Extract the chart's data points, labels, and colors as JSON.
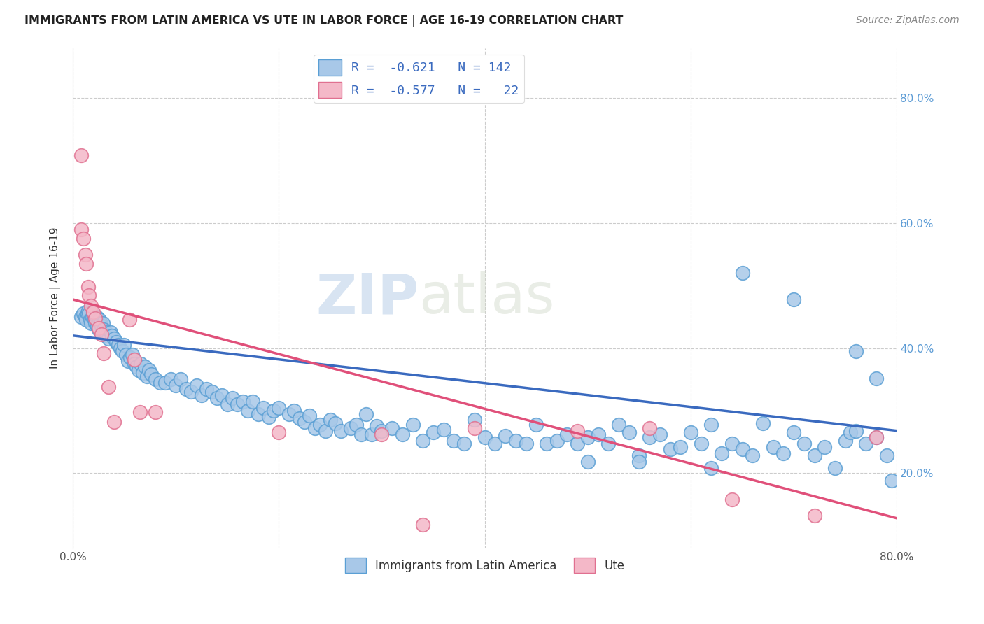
{
  "title": "IMMIGRANTS FROM LATIN AMERICA VS UTE IN LABOR FORCE | AGE 16-19 CORRELATION CHART",
  "source": "Source: ZipAtlas.com",
  "ylabel": "In Labor Force | Age 16-19",
  "xlim": [
    0.0,
    0.8
  ],
  "ylim": [
    0.08,
    0.88
  ],
  "yticks": [
    0.2,
    0.4,
    0.6,
    0.8
  ],
  "ytick_labels": [
    "20.0%",
    "40.0%",
    "60.0%",
    "80.0%"
  ],
  "xticks": [
    0.0,
    0.2,
    0.4,
    0.6,
    0.8
  ],
  "xtick_labels": [
    "0.0%",
    "",
    "",
    "",
    "80.0%"
  ],
  "watermark_zip": "ZIP",
  "watermark_atlas": "atlas",
  "blue_color": "#a8c8e8",
  "blue_edge_color": "#5a9fd4",
  "pink_color": "#f4b8c8",
  "pink_edge_color": "#e07090",
  "blue_line_color": "#3a6abf",
  "pink_line_color": "#e0507a",
  "blue_scatter": [
    [
      0.008,
      0.45
    ],
    [
      0.01,
      0.455
    ],
    [
      0.012,
      0.45
    ],
    [
      0.013,
      0.445
    ],
    [
      0.014,
      0.455
    ],
    [
      0.015,
      0.46
    ],
    [
      0.016,
      0.455
    ],
    [
      0.017,
      0.445
    ],
    [
      0.018,
      0.44
    ],
    [
      0.019,
      0.45
    ],
    [
      0.02,
      0.455
    ],
    [
      0.021,
      0.445
    ],
    [
      0.022,
      0.44
    ],
    [
      0.023,
      0.45
    ],
    [
      0.024,
      0.435
    ],
    [
      0.025,
      0.43
    ],
    [
      0.026,
      0.445
    ],
    [
      0.027,
      0.44
    ],
    [
      0.028,
      0.435
    ],
    [
      0.029,
      0.44
    ],
    [
      0.03,
      0.43
    ],
    [
      0.032,
      0.425
    ],
    [
      0.033,
      0.42
    ],
    [
      0.035,
      0.415
    ],
    [
      0.037,
      0.425
    ],
    [
      0.038,
      0.42
    ],
    [
      0.04,
      0.415
    ],
    [
      0.042,
      0.41
    ],
    [
      0.044,
      0.405
    ],
    [
      0.046,
      0.4
    ],
    [
      0.048,
      0.395
    ],
    [
      0.05,
      0.405
    ],
    [
      0.052,
      0.39
    ],
    [
      0.054,
      0.38
    ],
    [
      0.056,
      0.385
    ],
    [
      0.058,
      0.39
    ],
    [
      0.06,
      0.375
    ],
    [
      0.062,
      0.37
    ],
    [
      0.064,
      0.365
    ],
    [
      0.066,
      0.375
    ],
    [
      0.068,
      0.36
    ],
    [
      0.07,
      0.37
    ],
    [
      0.072,
      0.355
    ],
    [
      0.074,
      0.365
    ],
    [
      0.076,
      0.358
    ],
    [
      0.08,
      0.35
    ],
    [
      0.085,
      0.345
    ],
    [
      0.09,
      0.345
    ],
    [
      0.095,
      0.35
    ],
    [
      0.1,
      0.34
    ],
    [
      0.105,
      0.35
    ],
    [
      0.11,
      0.335
    ],
    [
      0.115,
      0.33
    ],
    [
      0.12,
      0.34
    ],
    [
      0.125,
      0.325
    ],
    [
      0.13,
      0.335
    ],
    [
      0.135,
      0.33
    ],
    [
      0.14,
      0.32
    ],
    [
      0.145,
      0.325
    ],
    [
      0.15,
      0.31
    ],
    [
      0.155,
      0.32
    ],
    [
      0.16,
      0.31
    ],
    [
      0.165,
      0.315
    ],
    [
      0.17,
      0.3
    ],
    [
      0.175,
      0.315
    ],
    [
      0.18,
      0.295
    ],
    [
      0.185,
      0.305
    ],
    [
      0.19,
      0.29
    ],
    [
      0.195,
      0.3
    ],
    [
      0.2,
      0.305
    ],
    [
      0.21,
      0.295
    ],
    [
      0.215,
      0.3
    ],
    [
      0.22,
      0.288
    ],
    [
      0.225,
      0.282
    ],
    [
      0.23,
      0.292
    ],
    [
      0.235,
      0.272
    ],
    [
      0.24,
      0.278
    ],
    [
      0.245,
      0.268
    ],
    [
      0.25,
      0.285
    ],
    [
      0.255,
      0.28
    ],
    [
      0.26,
      0.268
    ],
    [
      0.27,
      0.272
    ],
    [
      0.275,
      0.278
    ],
    [
      0.28,
      0.262
    ],
    [
      0.285,
      0.295
    ],
    [
      0.29,
      0.262
    ],
    [
      0.295,
      0.275
    ],
    [
      0.3,
      0.268
    ],
    [
      0.31,
      0.272
    ],
    [
      0.32,
      0.262
    ],
    [
      0.33,
      0.278
    ],
    [
      0.34,
      0.252
    ],
    [
      0.35,
      0.265
    ],
    [
      0.36,
      0.27
    ],
    [
      0.37,
      0.252
    ],
    [
      0.38,
      0.248
    ],
    [
      0.39,
      0.285
    ],
    [
      0.4,
      0.258
    ],
    [
      0.41,
      0.248
    ],
    [
      0.42,
      0.26
    ],
    [
      0.43,
      0.252
    ],
    [
      0.44,
      0.248
    ],
    [
      0.45,
      0.278
    ],
    [
      0.46,
      0.248
    ],
    [
      0.47,
      0.252
    ],
    [
      0.48,
      0.262
    ],
    [
      0.49,
      0.248
    ],
    [
      0.5,
      0.258
    ],
    [
      0.51,
      0.262
    ],
    [
      0.52,
      0.248
    ],
    [
      0.53,
      0.278
    ],
    [
      0.54,
      0.265
    ],
    [
      0.55,
      0.228
    ],
    [
      0.56,
      0.258
    ],
    [
      0.57,
      0.262
    ],
    [
      0.58,
      0.238
    ],
    [
      0.59,
      0.242
    ],
    [
      0.6,
      0.265
    ],
    [
      0.61,
      0.248
    ],
    [
      0.62,
      0.278
    ],
    [
      0.63,
      0.232
    ],
    [
      0.64,
      0.248
    ],
    [
      0.65,
      0.238
    ],
    [
      0.66,
      0.228
    ],
    [
      0.67,
      0.28
    ],
    [
      0.68,
      0.242
    ],
    [
      0.69,
      0.232
    ],
    [
      0.7,
      0.265
    ],
    [
      0.71,
      0.248
    ],
    [
      0.72,
      0.228
    ],
    [
      0.73,
      0.242
    ],
    [
      0.74,
      0.208
    ],
    [
      0.75,
      0.252
    ],
    [
      0.755,
      0.265
    ],
    [
      0.76,
      0.268
    ],
    [
      0.77,
      0.248
    ],
    [
      0.78,
      0.258
    ],
    [
      0.79,
      0.228
    ],
    [
      0.795,
      0.188
    ],
    [
      0.65,
      0.52
    ],
    [
      0.7,
      0.478
    ],
    [
      0.76,
      0.395
    ],
    [
      0.78,
      0.352
    ],
    [
      0.62,
      0.208
    ],
    [
      0.55,
      0.218
    ],
    [
      0.5,
      0.218
    ]
  ],
  "pink_scatter": [
    [
      0.008,
      0.708
    ],
    [
      0.008,
      0.59
    ],
    [
      0.01,
      0.575
    ],
    [
      0.012,
      0.55
    ],
    [
      0.013,
      0.535
    ],
    [
      0.015,
      0.498
    ],
    [
      0.016,
      0.485
    ],
    [
      0.018,
      0.468
    ],
    [
      0.02,
      0.458
    ],
    [
      0.022,
      0.448
    ],
    [
      0.025,
      0.432
    ],
    [
      0.028,
      0.422
    ],
    [
      0.03,
      0.392
    ],
    [
      0.035,
      0.338
    ],
    [
      0.04,
      0.282
    ],
    [
      0.055,
      0.445
    ],
    [
      0.06,
      0.382
    ],
    [
      0.065,
      0.298
    ],
    [
      0.08,
      0.298
    ],
    [
      0.2,
      0.265
    ],
    [
      0.3,
      0.262
    ],
    [
      0.39,
      0.272
    ],
    [
      0.49,
      0.268
    ],
    [
      0.56,
      0.272
    ],
    [
      0.64,
      0.158
    ],
    [
      0.72,
      0.132
    ],
    [
      0.78,
      0.258
    ],
    [
      0.34,
      0.118
    ]
  ],
  "blue_line": [
    [
      0.0,
      0.42
    ],
    [
      0.8,
      0.268
    ]
  ],
  "pink_line": [
    [
      0.0,
      0.478
    ],
    [
      0.8,
      0.128
    ]
  ]
}
